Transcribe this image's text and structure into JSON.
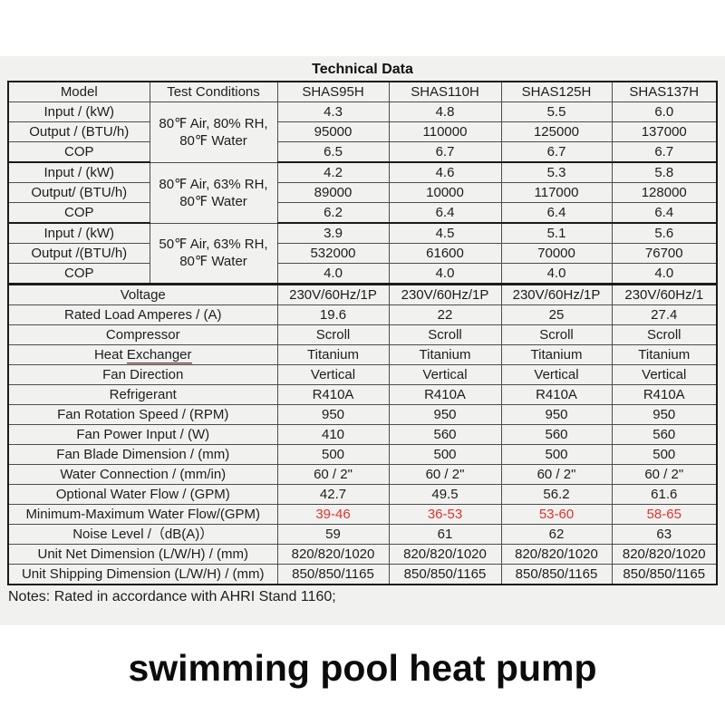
{
  "title": "Technical Data",
  "notes": "Notes: Rated in accordance with AHRI Stand 1160;",
  "caption": "swimming pool heat pump",
  "colors": {
    "highlight_red": "#d9352f",
    "band_bg": "#f1f1f0"
  },
  "table": {
    "header": [
      "Model",
      "Test Conditions",
      "SHAS95H",
      "SHAS110H",
      "SHAS125H",
      "SHAS137H"
    ],
    "test_groups": [
      {
        "condition": "80℉ Air, 80% RH,\n80℉ Water",
        "rows": [
          {
            "label": "Input / (kW)",
            "values": [
              "4.3",
              "4.8",
              "5.5",
              "6.0"
            ]
          },
          {
            "label": "Output / (BTU/h)",
            "values": [
              "95000",
              "110000",
              "125000",
              "137000"
            ]
          },
          {
            "label": "COP",
            "values": [
              "6.5",
              "6.7",
              "6.7",
              "6.7"
            ]
          }
        ]
      },
      {
        "condition": "80℉ Air, 63% RH,\n80℉ Water",
        "rows": [
          {
            "label": "Input / (kW)",
            "values": [
              "4.2",
              "4.6",
              "5.3",
              "5.8"
            ]
          },
          {
            "label": "Output/ (BTU/h)",
            "values": [
              "89000",
              "10000",
              "117000",
              "128000"
            ]
          },
          {
            "label": "COP",
            "values": [
              "6.2",
              "6.4",
              "6.4",
              "6.4"
            ]
          }
        ]
      },
      {
        "condition": "50℉ Air, 63% RH,\n80℉ Water",
        "rows": [
          {
            "label": "Input / (kW)",
            "values": [
              "3.9",
              "4.5",
              "5.1",
              "5.6"
            ]
          },
          {
            "label": "Output /(BTU/h)",
            "values": [
              "532000",
              "61600",
              "70000",
              "76700"
            ]
          },
          {
            "label": "COP",
            "values": [
              "4.0",
              "4.0",
              "4.0",
              "4.0"
            ]
          }
        ]
      }
    ],
    "spec_rows": [
      {
        "label": "Voltage",
        "values": [
          "230V/60Hz/1P",
          "230V/60Hz/1P",
          "230V/60Hz/1P",
          "230V/60Hz/1"
        ]
      },
      {
        "label": "Rated Load Amperes / (A)",
        "values": [
          "19.6",
          "22",
          "25",
          "27.4"
        ]
      },
      {
        "label": "Compressor",
        "values": [
          "Scroll",
          "Scroll",
          "Scroll",
          "Scroll"
        ]
      },
      {
        "label": "Heat Exchanger",
        "underline_word": "Exchanger",
        "values": [
          "Titanium",
          "Titanium",
          "Titanium",
          "Titanium"
        ]
      },
      {
        "label": "Fan Direction",
        "values": [
          "Vertical",
          "Vertical",
          "Vertical",
          "Vertical"
        ]
      },
      {
        "label": "Refrigerant",
        "values": [
          "R410A",
          "R410A",
          "R410A",
          "R410A"
        ]
      },
      {
        "label": "Fan Rotation Speed / (RPM)",
        "values": [
          "950",
          "950",
          "950",
          "950"
        ]
      },
      {
        "label": "Fan Power Input / (W)",
        "values": [
          "410",
          "560",
          "560",
          "560"
        ]
      },
      {
        "label": "Fan Blade Dimension / (mm)",
        "values": [
          "500",
          "500",
          "500",
          "500"
        ]
      },
      {
        "label": "Water Connection / (mm/in)",
        "values": [
          "60 / 2\"",
          "60 / 2\"",
          "60 / 2\"",
          "60 / 2\""
        ]
      },
      {
        "label": "Optional Water Flow / (GPM)",
        "values": [
          "42.7",
          "49.5",
          "56.2",
          "61.6"
        ]
      },
      {
        "label": "Minimum-Maximum Water Flow/(GPM)",
        "values": [
          "39-46",
          "36-53",
          "53-60",
          "58-65"
        ],
        "red": true
      },
      {
        "label": "Noise Level /（dB(A)）",
        "values": [
          "59",
          "61",
          "62",
          "63"
        ]
      },
      {
        "label": "Unit Net Dimension (L/W/H) / (mm)",
        "values": [
          "820/820/1020",
          "820/820/1020",
          "820/820/1020",
          "820/820/1020"
        ]
      },
      {
        "label": "Unit Shipping Dimension (L/W/H) / (mm)",
        "values": [
          "850/850/1165",
          "850/850/1165",
          "850/850/1165",
          "850/850/1165"
        ]
      }
    ]
  }
}
